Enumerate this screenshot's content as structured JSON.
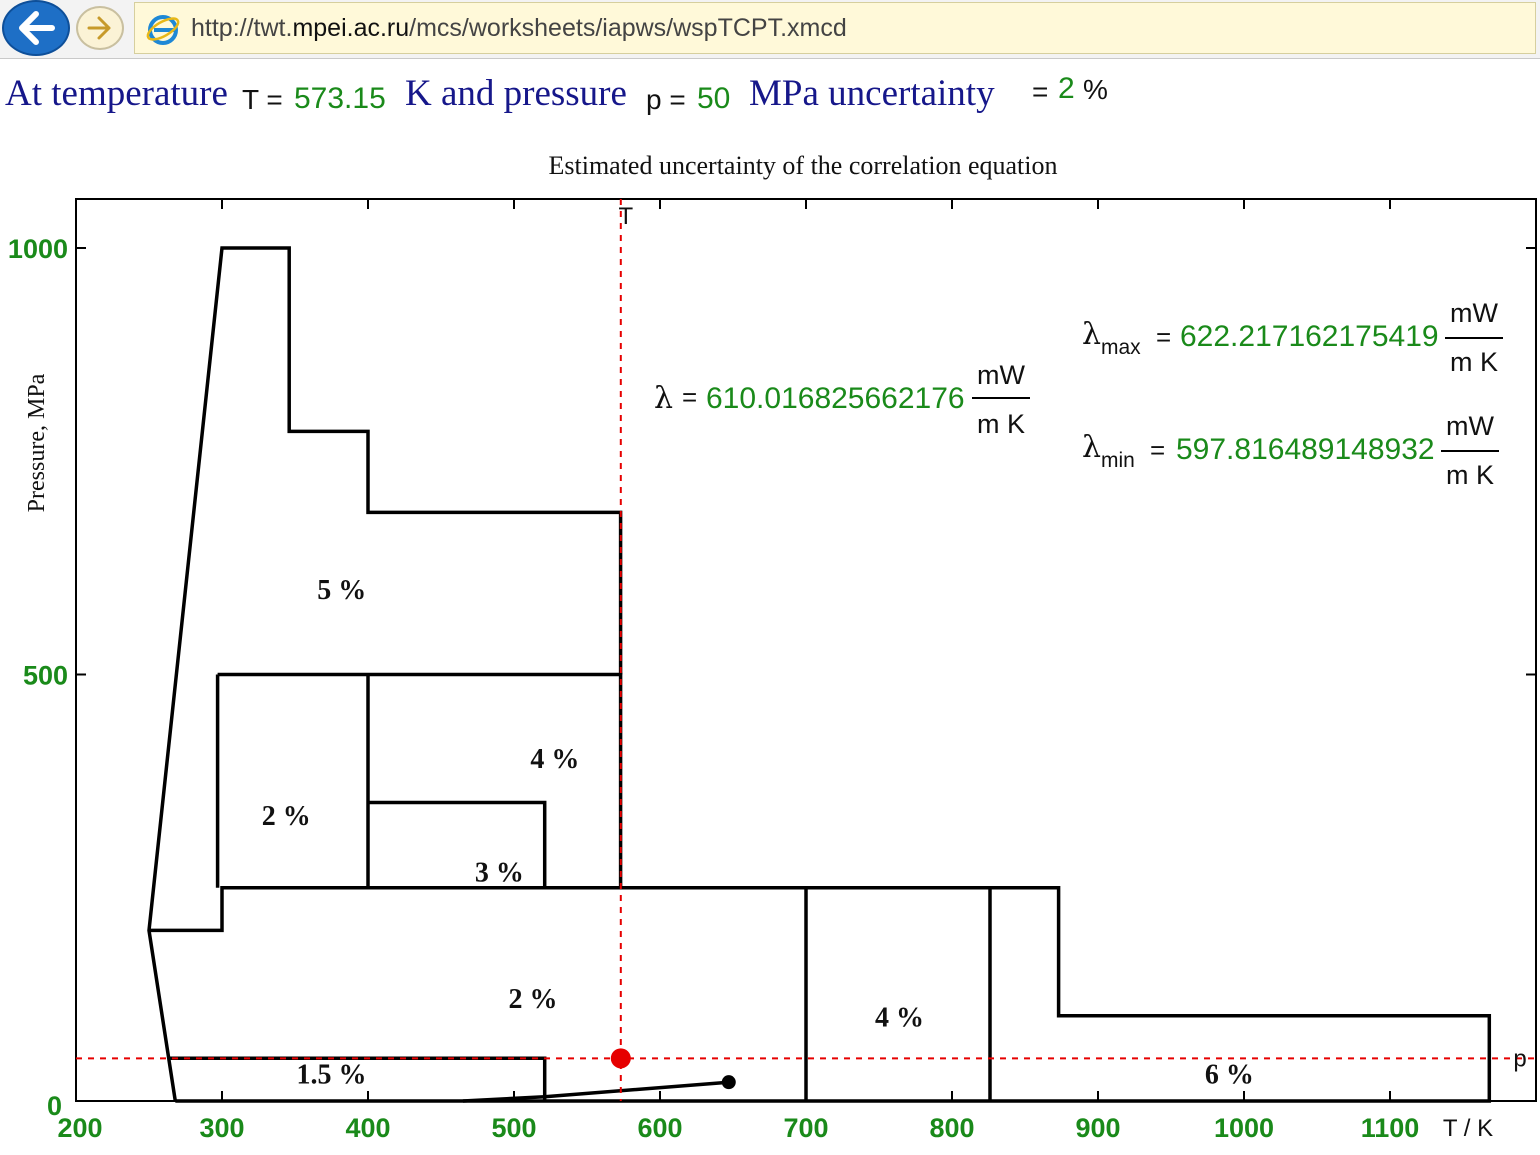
{
  "browser": {
    "url_prefix": "http://twt.",
    "url_host": "mpei.ac.ru",
    "url_path": "/mcs/worksheets/iapws/wspTCPT.xmcd",
    "back_icon": "back-arrow-icon",
    "forward_icon": "forward-arrow-icon",
    "page_icon": "ie-page-icon"
  },
  "header": {
    "t1": "At temperature",
    "T_label": "T =",
    "T_value": "573.15",
    "t2": "K and pressure",
    "p_label": "p =",
    "p_value": "50",
    "t3": "MPa uncertainty",
    "unc_eq": "=",
    "unc_value": "2",
    "unc_unit": "%"
  },
  "results": {
    "lambda_symbol": "λ",
    "lambda_eq": "=",
    "lambda_value": "610.016825662176",
    "max_sub": "max",
    "lambda_max_value": "622.217162175419",
    "min_sub": "min",
    "lambda_min_value": "597.816489148932",
    "unit_num": "mW",
    "unit_den": "m K"
  },
  "colors": {
    "text_blue": "#16178a",
    "value_green": "#1a8a1a",
    "marker_red": "#e60000",
    "boundary": "#000000"
  },
  "chart_data": {
    "type": "line",
    "title": "Estimated uncertainty of the correlation equation",
    "xlabel": "T / K",
    "ylabel": "Pressure, MPa",
    "xlim": [
      200,
      1200
    ],
    "ylim": [
      0,
      1050
    ],
    "x_ticks": [
      200,
      300,
      400,
      500,
      600,
      700,
      800,
      900,
      1000,
      1100
    ],
    "y_ticks": [
      0,
      500,
      1000
    ],
    "grid": false,
    "boundaries": [
      [
        [
          268,
          0
        ],
        [
          250,
          200
        ],
        [
          300,
          1000
        ],
        [
          346,
          1000
        ],
        [
          346,
          785
        ],
        [
          400,
          785
        ],
        [
          400,
          690
        ],
        [
          573,
          690
        ],
        [
          573,
          500
        ]
      ],
      [
        [
          268,
          0
        ],
        [
          1168,
          0
        ],
        [
          1168,
          100
        ],
        [
          873,
          100
        ],
        [
          873,
          250
        ],
        [
          300,
          250
        ],
        [
          300,
          200
        ],
        [
          250,
          200
        ]
      ],
      [
        [
          297,
          500
        ],
        [
          573,
          500
        ],
        [
          573,
          250
        ]
      ],
      [
        [
          297,
          500
        ],
        [
          297,
          250
        ]
      ],
      [
        [
          400,
          500
        ],
        [
          400,
          250
        ]
      ],
      [
        [
          400,
          350
        ],
        [
          521,
          350
        ],
        [
          521,
          250
        ]
      ],
      [
        [
          264,
          50
        ],
        [
          521,
          50
        ],
        [
          521,
          0
        ]
      ],
      [
        [
          700,
          250
        ],
        [
          700,
          0
        ]
      ],
      [
        [
          826,
          250
        ],
        [
          826,
          0
        ]
      ],
      [
        [
          465,
          0
        ],
        [
          521,
          5
        ],
        [
          647,
          22
        ]
      ]
    ],
    "critical_point": [
      647.1,
      22.1
    ],
    "state_point": [
      573.15,
      50
    ],
    "crosshair_labels": {
      "vertical": "T",
      "horizontal": "p"
    },
    "regions": [
      {
        "label": "5 %",
        "x": 382,
        "y": 600
      },
      {
        "label": "4 %",
        "x": 528,
        "y": 402
      },
      {
        "label": "2 %",
        "x": 344,
        "y": 335
      },
      {
        "label": "3 %",
        "x": 490,
        "y": 269
      },
      {
        "label": "2 %",
        "x": 513,
        "y": 121
      },
      {
        "label": "1.5 %",
        "x": 375,
        "y": 32
      },
      {
        "label": "4 %",
        "x": 764,
        "y": 99
      },
      {
        "label": "6 %",
        "x": 990,
        "y": 32
      }
    ]
  }
}
